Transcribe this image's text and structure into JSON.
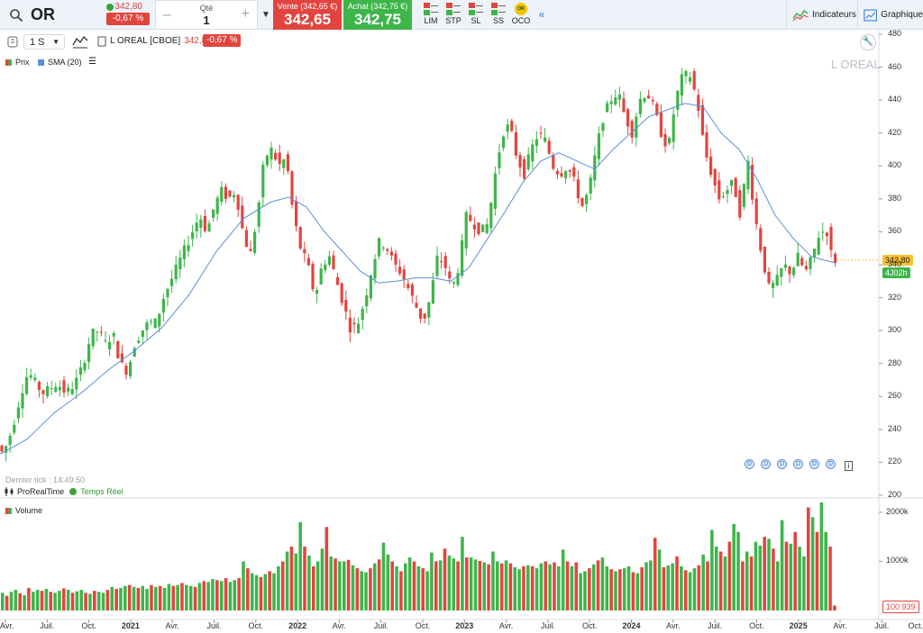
{
  "topbar": {
    "symbol": "OR",
    "last_price": "342,80",
    "last_change": "-0,67 %",
    "qty_label": "Qté",
    "qty_value": "1",
    "qty_minus": "–",
    "qty_plus": "+",
    "sell_label": "Vente (342,65 €)",
    "sell_price": "342,65",
    "buy_label": "Achat (342,75 €)",
    "buy_price": "342,75",
    "order_types": [
      "LIM",
      "STP",
      "SL",
      "SS",
      "OCO"
    ],
    "oco_badge": "OR",
    "indicators_label": "Indicateurs",
    "graph_label": "Graphique"
  },
  "chart_toolbar": {
    "timeframe": "1 S",
    "instrument": "L OREAL [CBOE]",
    "price": "342,80",
    "change": "-0,67 %"
  },
  "legend": {
    "price": "Prix",
    "sma": "SMA (20)",
    "volume": "Volume"
  },
  "watermark": "L OREAL",
  "last_tick": "Dernier tick : 14:49:50",
  "provider": "ProRealTime",
  "realtime": "Temps Réel",
  "badges": {
    "price": "342,80",
    "time": "4J02h",
    "volume": "100 939"
  },
  "colors": {
    "up": "#3eb54a",
    "down": "#e2453f",
    "sma": "#5b8fd9",
    "accent": "#2f77d1"
  },
  "chart_data": {
    "type": "candlestick",
    "title": "L OREAL",
    "price_axis": {
      "ticks": [
        200,
        220,
        240,
        260,
        280,
        300,
        320,
        340,
        360,
        380,
        400,
        420,
        440,
        460,
        480
      ],
      "range": [
        200,
        480
      ]
    },
    "volume_axis": {
      "ticks": [
        "1000k",
        "2000k"
      ],
      "range_k": [
        0,
        2200
      ]
    },
    "x_axis_labels": [
      {
        "label": "Avr.",
        "bold": false
      },
      {
        "label": "Juil.",
        "bold": false
      },
      {
        "label": "Oct.",
        "bold": false
      },
      {
        "label": "2021",
        "bold": true
      },
      {
        "label": "Avr.",
        "bold": false
      },
      {
        "label": "Juil.",
        "bold": false
      },
      {
        "label": "Oct.",
        "bold": false
      },
      {
        "label": "2022",
        "bold": true
      },
      {
        "label": "Avr.",
        "bold": false
      },
      {
        "label": "Juil.",
        "bold": false
      },
      {
        "label": "Oct.",
        "bold": false
      },
      {
        "label": "2023",
        "bold": true
      },
      {
        "label": "Avr.",
        "bold": false
      },
      {
        "label": "Juil.",
        "bold": false
      },
      {
        "label": "Oct.",
        "bold": false
      },
      {
        "label": "2024",
        "bold": true
      },
      {
        "label": "Avr.",
        "bold": false
      },
      {
        "label": "Juil.",
        "bold": false
      },
      {
        "label": "Oct.",
        "bold": false
      },
      {
        "label": "2025",
        "bold": true
      },
      {
        "label": "Avr.",
        "bold": false
      },
      {
        "label": "Juil.",
        "bold": false
      },
      {
        "label": "Oct.",
        "bold": false
      }
    ],
    "price_path": [
      [
        0,
        232
      ],
      [
        8,
        225
      ],
      [
        18,
        240
      ],
      [
        28,
        262
      ],
      [
        36,
        275
      ],
      [
        44,
        268
      ],
      [
        52,
        262
      ],
      [
        60,
        265
      ],
      [
        68,
        268
      ],
      [
        78,
        262
      ],
      [
        88,
        268
      ],
      [
        96,
        278
      ],
      [
        106,
        298
      ],
      [
        114,
        300
      ],
      [
        122,
        292
      ],
      [
        130,
        298
      ],
      [
        138,
        280
      ],
      [
        146,
        275
      ],
      [
        154,
        292
      ],
      [
        162,
        300
      ],
      [
        170,
        305
      ],
      [
        178,
        305
      ],
      [
        186,
        320
      ],
      [
        194,
        330
      ],
      [
        202,
        340
      ],
      [
        210,
        350
      ],
      [
        218,
        360
      ],
      [
        226,
        370
      ],
      [
        234,
        360
      ],
      [
        242,
        375
      ],
      [
        250,
        385
      ],
      [
        258,
        380
      ],
      [
        266,
        385
      ],
      [
        274,
        360
      ],
      [
        282,
        345
      ],
      [
        290,
        370
      ],
      [
        298,
        405
      ],
      [
        306,
        410
      ],
      [
        314,
        400
      ],
      [
        322,
        405
      ],
      [
        330,
        370
      ],
      [
        338,
        350
      ],
      [
        346,
        340
      ],
      [
        354,
        320
      ],
      [
        362,
        340
      ],
      [
        370,
        345
      ],
      [
        378,
        330
      ],
      [
        386,
        315
      ],
      [
        394,
        300
      ],
      [
        402,
        305
      ],
      [
        410,
        320
      ],
      [
        418,
        340
      ],
      [
        426,
        355
      ],
      [
        434,
        350
      ],
      [
        442,
        340
      ],
      [
        450,
        335
      ],
      [
        458,
        325
      ],
      [
        466,
        315
      ],
      [
        474,
        305
      ],
      [
        482,
        320
      ],
      [
        490,
        345
      ],
      [
        498,
        340
      ],
      [
        506,
        325
      ],
      [
        514,
        340
      ],
      [
        522,
        370
      ],
      [
        530,
        365
      ],
      [
        538,
        360
      ],
      [
        546,
        365
      ],
      [
        554,
        395
      ],
      [
        562,
        420
      ],
      [
        570,
        425
      ],
      [
        578,
        405
      ],
      [
        586,
        395
      ],
      [
        594,
        410
      ],
      [
        602,
        420
      ],
      [
        610,
        415
      ],
      [
        618,
        400
      ],
      [
        626,
        395
      ],
      [
        634,
        400
      ],
      [
        642,
        390
      ],
      [
        650,
        375
      ],
      [
        658,
        385
      ],
      [
        666,
        410
      ],
      [
        674,
        430
      ],
      [
        682,
        440
      ],
      [
        690,
        445
      ],
      [
        698,
        430
      ],
      [
        706,
        420
      ],
      [
        714,
        440
      ],
      [
        722,
        445
      ],
      [
        730,
        435
      ],
      [
        738,
        420
      ],
      [
        746,
        410
      ],
      [
        754,
        440
      ],
      [
        762,
        455
      ],
      [
        770,
        455
      ],
      [
        778,
        440
      ],
      [
        786,
        410
      ],
      [
        794,
        395
      ],
      [
        802,
        380
      ],
      [
        810,
        385
      ],
      [
        818,
        390
      ],
      [
        826,
        370
      ],
      [
        834,
        405
      ],
      [
        842,
        370
      ],
      [
        850,
        345
      ],
      [
        858,
        325
      ],
      [
        866,
        330
      ],
      [
        874,
        340
      ],
      [
        882,
        335
      ],
      [
        890,
        345
      ],
      [
        898,
        335
      ],
      [
        906,
        345
      ],
      [
        914,
        360
      ],
      [
        922,
        360
      ],
      [
        928,
        343
      ]
    ],
    "sma_path": [
      [
        0,
        225
      ],
      [
        30,
        234
      ],
      [
        60,
        250
      ],
      [
        90,
        262
      ],
      [
        120,
        276
      ],
      [
        150,
        288
      ],
      [
        180,
        302
      ],
      [
        210,
        322
      ],
      [
        240,
        348
      ],
      [
        270,
        368
      ],
      [
        300,
        378
      ],
      [
        320,
        381
      ],
      [
        340,
        375
      ],
      [
        360,
        360
      ],
      [
        380,
        348
      ],
      [
        400,
        336
      ],
      [
        420,
        329
      ],
      [
        440,
        330
      ],
      [
        460,
        332
      ],
      [
        480,
        332
      ],
      [
        500,
        330
      ],
      [
        520,
        338
      ],
      [
        540,
        355
      ],
      [
        560,
        372
      ],
      [
        580,
        390
      ],
      [
        600,
        403
      ],
      [
        620,
        408
      ],
      [
        640,
        403
      ],
      [
        660,
        398
      ],
      [
        680,
        410
      ],
      [
        700,
        420
      ],
      [
        720,
        430
      ],
      [
        740,
        434
      ],
      [
        760,
        438
      ],
      [
        780,
        436
      ],
      [
        800,
        420
      ],
      [
        820,
        410
      ],
      [
        840,
        392
      ],
      [
        860,
        370
      ],
      [
        880,
        356
      ],
      [
        900,
        345
      ],
      [
        920,
        342
      ],
      [
        928,
        341
      ]
    ],
    "volume_k": [
      360,
      300,
      380,
      420,
      350,
      310,
      460,
      380,
      420,
      400,
      440,
      380,
      360,
      400,
      450,
      420,
      360,
      390,
      420,
      360,
      340,
      400,
      380,
      360,
      420,
      480,
      440,
      460,
      500,
      520,
      480,
      460,
      500,
      440,
      520,
      480,
      500,
      460,
      540,
      500,
      520,
      560,
      520,
      500,
      480,
      560,
      600,
      580,
      640,
      620,
      600,
      660,
      580,
      620,
      660,
      1000,
      860,
      760,
      720,
      680,
      740,
      800,
      760,
      900,
      1000,
      1200,
      1300,
      1160,
      1800,
      1300,
      1120,
      900,
      1000,
      1260,
      1700,
      1100,
      1060,
      1000,
      1000,
      1030,
      920,
      860,
      800,
      780,
      860,
      960,
      1040,
      1380,
      1140,
      1000,
      900,
      800,
      960,
      1080,
      1000,
      900,
      860,
      800,
      1180,
      1000,
      1020,
      1260,
      1120,
      1060,
      1000,
      1500,
      1080,
      1080,
      1040,
      1010,
      980,
      940,
      1200,
      1000,
      960,
      1020,
      960,
      880,
      840,
      900,
      920,
      900,
      860,
      960,
      1000,
      940,
      980,
      900,
      1240,
      1000,
      900,
      980,
      760,
      800,
      860,
      940,
      1020,
      1080,
      900,
      840,
      800,
      840,
      860,
      900,
      780,
      760,
      880,
      980,
      1020,
      1480,
      1240,
      880,
      920,
      960,
      1100,
      900,
      820,
      780,
      860,
      920,
      1140,
      1000,
      1640,
      1300,
      1200,
      1100,
      1400,
      1760,
      1600,
      1000,
      1200,
      1100,
      1400,
      1320,
      1500,
      1460,
      1260,
      1000,
      1840,
      1400,
      1360,
      1600,
      1300,
      1100,
      2100,
      1900,
      1600,
      2200,
      1600,
      1300,
      100
    ]
  }
}
